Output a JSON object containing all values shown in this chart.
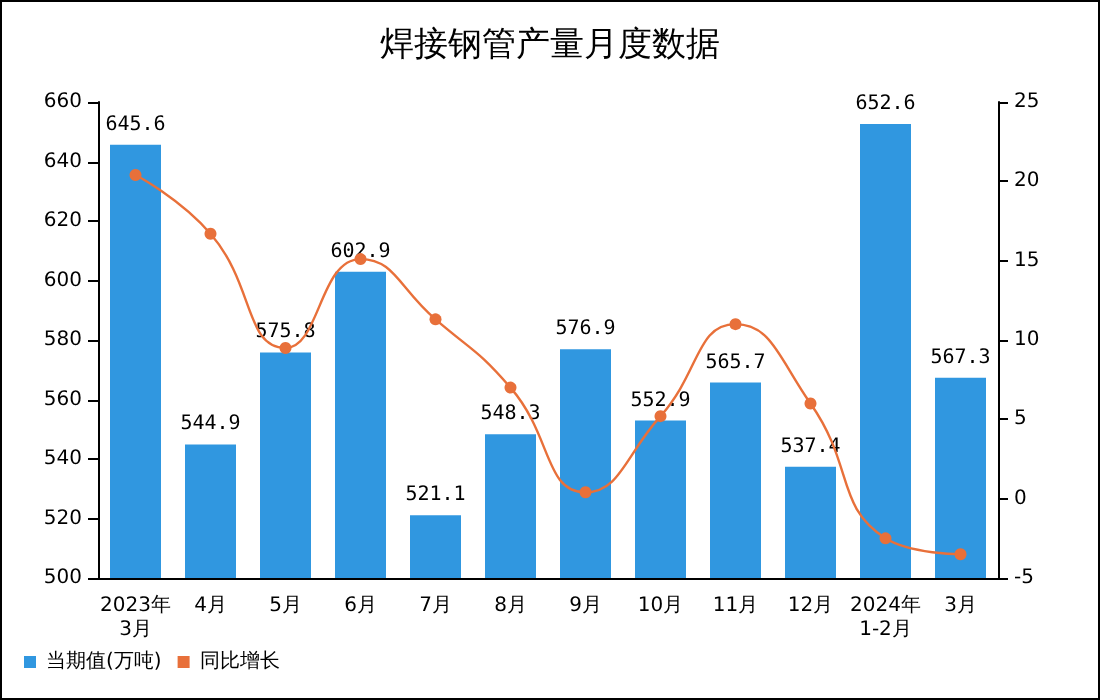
{
  "chart_data": {
    "type": "bar",
    "title": "焊接钢管产量月度数据",
    "categories": [
      "2023年\n3月",
      "4月",
      "5月",
      "6月",
      "7月",
      "8月",
      "9月",
      "10月",
      "11月",
      "12月",
      "2024年\n1-2月",
      "3月"
    ],
    "series": [
      {
        "name": "当期值(万吨)",
        "color": "#3097e0",
        "values": [
          645.6,
          544.9,
          575.8,
          602.9,
          521.1,
          548.3,
          576.9,
          552.9,
          565.7,
          537.4,
          652.6,
          567.3
        ],
        "value_labels": [
          "645.6",
          "544.9",
          "575.8",
          "602.9",
          "521.1",
          "548.3",
          "576.9",
          "552.9",
          "565.7",
          "537.4",
          "652.6",
          "567.3"
        ]
      },
      {
        "name": "同比增长",
        "type": "line",
        "axis": "y2",
        "color": "#e8703a",
        "values": [
          20.4,
          16.7,
          9.5,
          15.1,
          11.3,
          7.0,
          0.4,
          5.2,
          11.0,
          6.0,
          -2.5,
          -3.5
        ]
      }
    ],
    "marker": "circle",
    "grid": false,
    "legend": "bottom left",
    "ylim": [
      500,
      660
    ],
    "yticks": [
      500,
      520,
      540,
      560,
      580,
      600,
      620,
      640,
      660
    ],
    "y2lim": [
      -5,
      25
    ],
    "y2ticks": [
      -5,
      0,
      5,
      10,
      15,
      20,
      25
    ]
  }
}
